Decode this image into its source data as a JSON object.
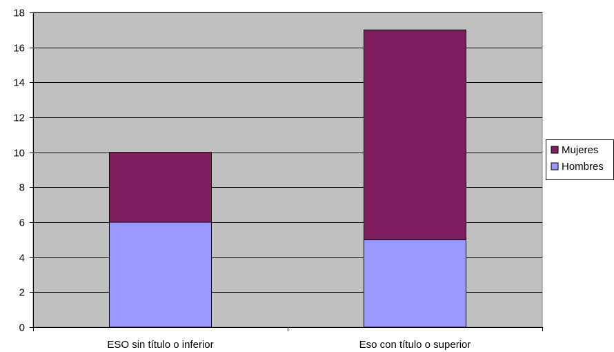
{
  "chart_data": {
    "type": "bar",
    "stacked": true,
    "categories": [
      "ESO sin título o inferior",
      "Eso con título o superior"
    ],
    "series": [
      {
        "name": "Hombres",
        "values": [
          6,
          5
        ],
        "color": "#9999ff"
      },
      {
        "name": "Mujeres",
        "values": [
          4,
          12
        ],
        "color": "#7f1f5f"
      }
    ],
    "ylim": [
      0,
      18
    ],
    "yticks": [
      0,
      2,
      4,
      6,
      8,
      10,
      12,
      14,
      16,
      18
    ],
    "grid": true,
    "plot_background": "#c0c0c0",
    "legend_position": "right",
    "legend_order": [
      "Mujeres",
      "Hombres"
    ]
  }
}
